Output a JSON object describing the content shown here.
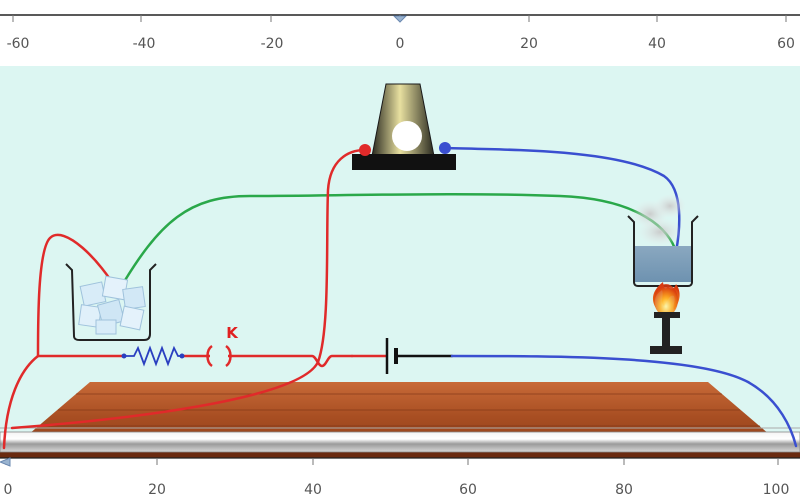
{
  "top_ruler": {
    "labels": [
      "-60",
      "-40",
      "-20",
      "0",
      "20",
      "40",
      "60"
    ],
    "slider_value": 0
  },
  "bottom_ruler": {
    "labels": [
      "0",
      "20",
      "40",
      "60",
      "80",
      "100"
    ],
    "slider_value": 0
  },
  "circuit": {
    "switch_label": "K",
    "components": [
      "ice-beaker",
      "resistor",
      "switch",
      "battery",
      "galvanometer-lamp",
      "hot-water-beaker",
      "burner",
      "table",
      "metal-rod"
    ]
  },
  "colors": {
    "background": "#dcf6f2",
    "wire_red": "#e02a2a",
    "wire_blue": "#3a4fd0",
    "wire_green": "#2aa84a",
    "table_wood": "#b85a2c"
  }
}
